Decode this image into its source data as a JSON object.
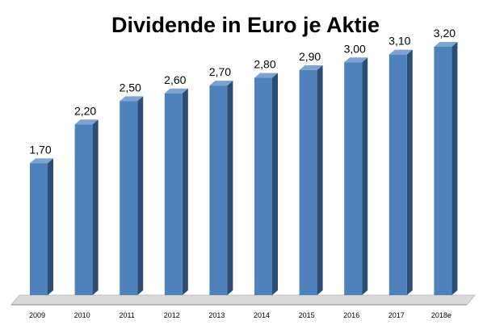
{
  "chart_data": {
    "type": "bar",
    "title": "Dividende in Euro je Aktie",
    "categories": [
      "2009",
      "2010",
      "2011",
      "2012",
      "2013",
      "2014",
      "2015",
      "2016",
      "2017",
      "2018e"
    ],
    "values": [
      1.7,
      2.2,
      2.5,
      2.6,
      2.7,
      2.8,
      2.9,
      3.0,
      3.1,
      3.2
    ],
    "value_labels": [
      "1,70",
      "2,20",
      "2,50",
      "2,60",
      "2,70",
      "2,80",
      "2,90",
      "3,00",
      "3,10",
      "3,20"
    ],
    "ylim": [
      0,
      3.2
    ],
    "grid": false,
    "legend": "none",
    "colors": {
      "bar_front": "#4F81BD",
      "bar_side": "#2C4D75",
      "bar_top": "#7FA3D1",
      "floor": "#D9D9D9"
    }
  }
}
